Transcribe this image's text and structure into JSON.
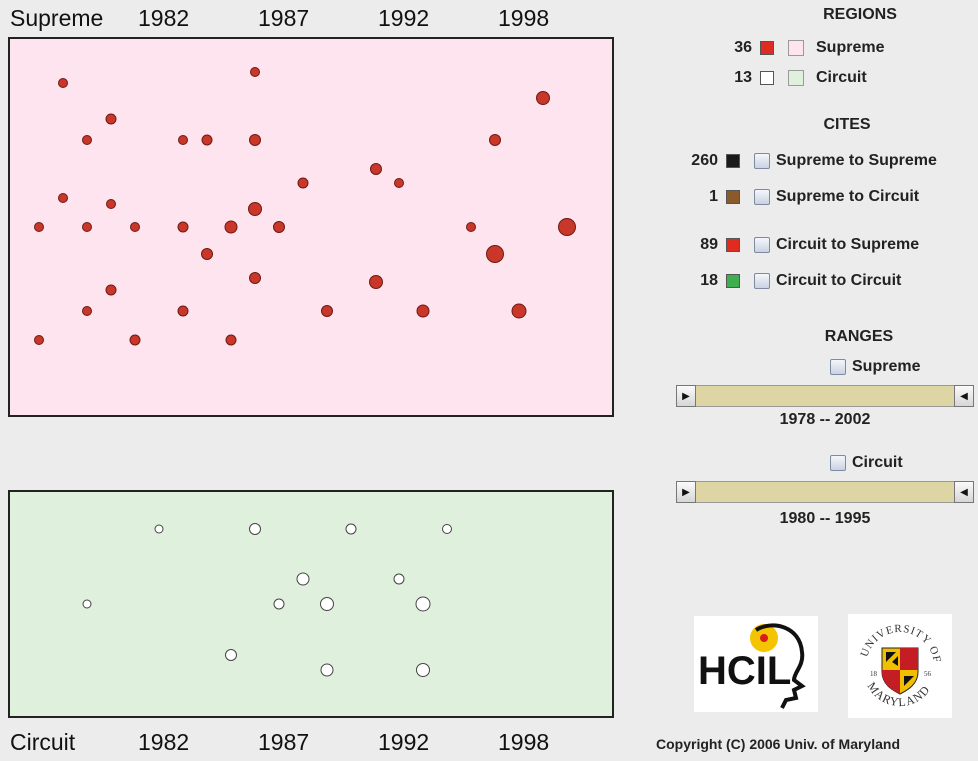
{
  "top_axis": {
    "title": "Supreme",
    "years": [
      "1982",
      "1987",
      "1992",
      "1998"
    ]
  },
  "bottom_axis": {
    "title": "Circuit",
    "years": [
      "1982",
      "1987",
      "1992",
      "1998"
    ]
  },
  "regions": {
    "heading": "REGIONS",
    "items": [
      {
        "count": "36",
        "marker_color": "#e02b20",
        "region_color": "#fde4ee",
        "label": "Supreme"
      },
      {
        "count": "13",
        "marker_color": "#ffffff",
        "region_color": "#dff0dc",
        "label": "Circuit"
      }
    ]
  },
  "cites": {
    "heading": "CITES",
    "items": [
      {
        "count": "260",
        "color": "#1a1a1a",
        "label": "Supreme to Supreme"
      },
      {
        "count": "1",
        "color": "#8a5a2c",
        "label": "Supreme to Circuit"
      },
      {
        "count": "89",
        "color": "#e02b20",
        "label": "Circuit to Supreme"
      },
      {
        "count": "18",
        "color": "#3fae4f",
        "label": "Circuit to Circuit"
      }
    ]
  },
  "ranges": {
    "heading": "RANGES",
    "supreme": {
      "label": "Supreme",
      "range_text": "1978 -- 2002"
    },
    "circuit": {
      "label": "Circuit",
      "range_text": "1980 -- 1995"
    }
  },
  "logos": {
    "hcil_text": "HCIL",
    "umd_top": "UNIVERSITY OF",
    "umd_bottom": "MARYLAND"
  },
  "copyright": "Copyright (C) 2006  Univ. of Maryland",
  "colors": {
    "supreme_bg": "#fde4ee",
    "circuit_bg": "#dff0dc",
    "supreme_dot": "#c8372a",
    "slider_track": "#ddd6a4"
  }
}
